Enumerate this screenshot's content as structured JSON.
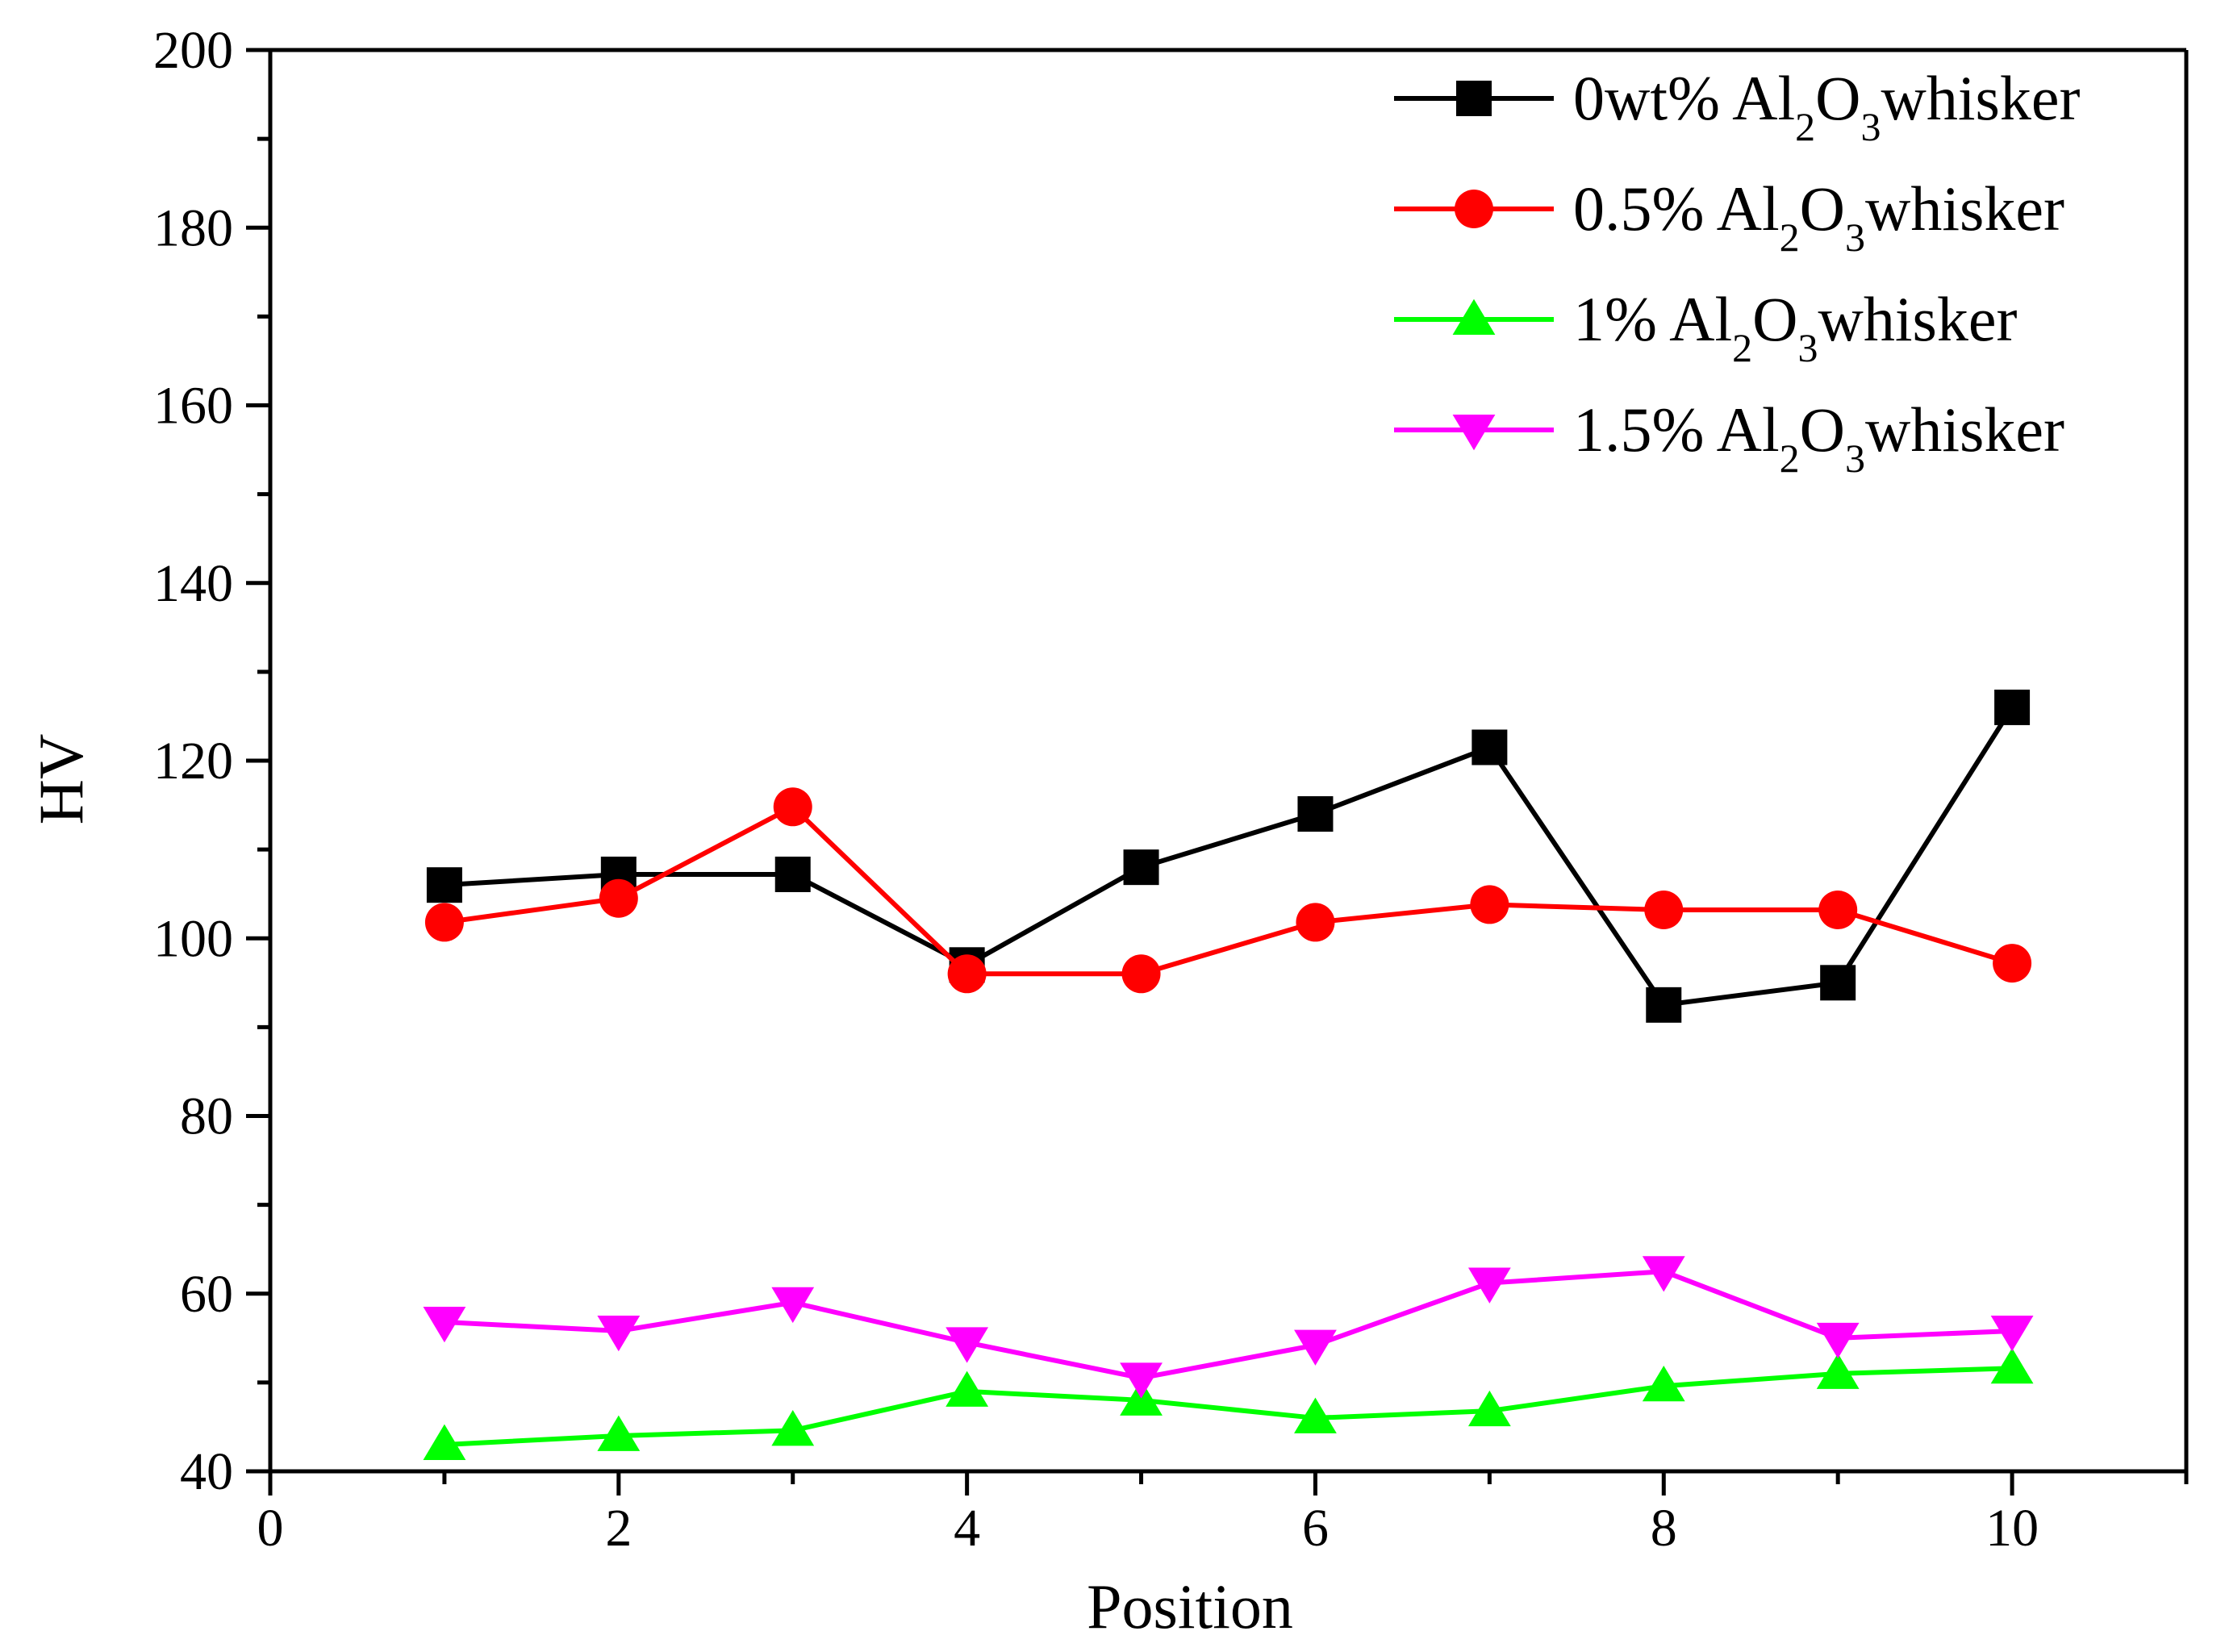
{
  "chart_data": {
    "type": "line",
    "title": "",
    "xlabel": "Position",
    "ylabel": "HV",
    "xlim": [
      0,
      11
    ],
    "ylim": [
      40,
      200
    ],
    "x_ticks": [
      0,
      2,
      4,
      6,
      8,
      10
    ],
    "y_ticks": [
      40,
      60,
      80,
      100,
      120,
      140,
      160,
      180,
      200
    ],
    "x": [
      1,
      2,
      3,
      4,
      5,
      6,
      7,
      8,
      9,
      10
    ],
    "legend_position": "top-right",
    "series": [
      {
        "name": "0wt% Al2O3whisker",
        "label_prefix": "0wt% Al",
        "values": [
          106,
          107.2,
          107.2,
          97,
          108,
          114,
          121.5,
          92.5,
          95,
          126
        ],
        "color": "#000000",
        "marker": "square"
      },
      {
        "name": "0.5% Al2O3whisker",
        "label_prefix": "0.5% Al",
        "values": [
          101.8,
          104.5,
          114.8,
          96,
          96,
          101.8,
          103.8,
          103.2,
          103.2,
          97.2
        ],
        "color": "#ff0000",
        "marker": "circle"
      },
      {
        "name": "1% Al2O3whisker",
        "label_prefix": "1% Al",
        "values": [
          43,
          44,
          44.6,
          49,
          48,
          46,
          46.8,
          49.6,
          51,
          51.6
        ],
        "color": "#00ff00",
        "marker": "triangle-up"
      },
      {
        "name": "1.5% Al2O3whisker",
        "label_prefix": "1.5% Al",
        "values": [
          56.8,
          55.8,
          59,
          54.5,
          50.5,
          54.2,
          61.2,
          62.5,
          55,
          55.8
        ],
        "color": "#ff00ff",
        "marker": "triangle-down"
      }
    ],
    "legend_common": {
      "sub1": "2",
      "mid": "O",
      "sub2": "3",
      "suffix": "whisker"
    }
  }
}
